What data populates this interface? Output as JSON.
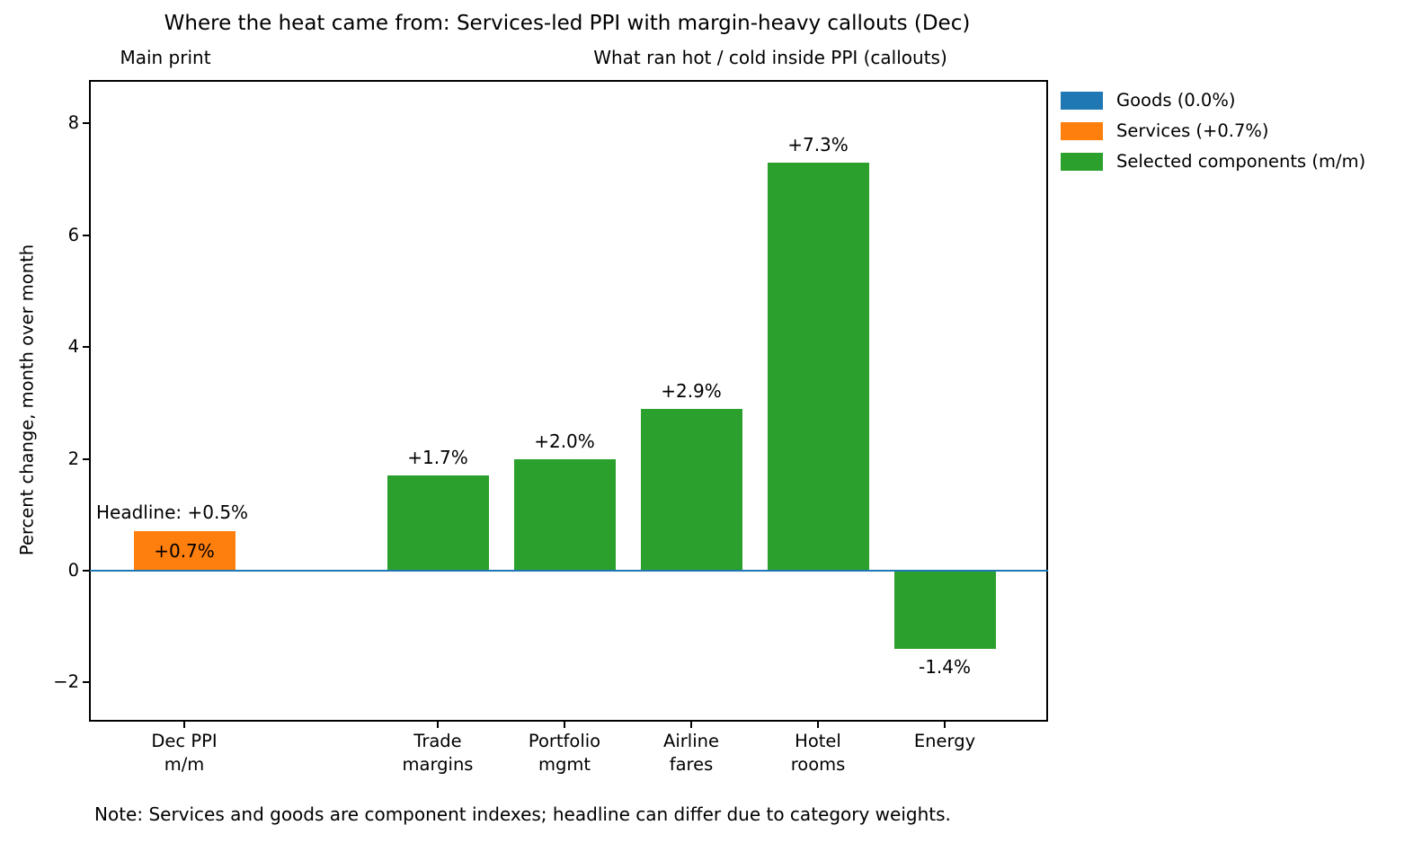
{
  "chart_data": {
    "type": "bar",
    "title": "Where the heat came from: Services-led PPI with margin-heavy callouts (Dec)",
    "subtitle_left": "Main print",
    "subtitle_right": "What ran hot / cold inside PPI (callouts)",
    "ylabel": "Percent change, month over month",
    "ylim": [
      -2.65,
      8.76
    ],
    "yticks": [
      -2,
      0,
      2,
      4,
      6,
      8
    ],
    "grid": false,
    "categories": [
      "Dec PPI\nm/m",
      "Trade\nmargins",
      "Portfolio\nmgmt",
      "Airline\nfares",
      "Hotel\nrooms",
      "Energy"
    ],
    "x_positions": [
      0,
      2,
      3,
      4,
      5,
      6
    ],
    "values": [
      0.7,
      1.7,
      2.0,
      2.9,
      7.3,
      -1.4
    ],
    "bar_labels": [
      "+0.7%",
      "+1.7%",
      "+2.0%",
      "+2.9%",
      "+7.3%",
      "-1.4%"
    ],
    "bar_label_placement": [
      "inside",
      "above",
      "above",
      "above",
      "above",
      "below"
    ],
    "bar_colors": [
      "#ff7f0e",
      "#2ca02c",
      "#2ca02c",
      "#2ca02c",
      "#2ca02c",
      "#2ca02c"
    ],
    "zero_line_color": "#1f77b4",
    "annotation": "Headline: +0.5%",
    "legend_position": "outside-right",
    "legend": [
      {
        "label": "Goods (0.0%)",
        "color": "#1f77b4"
      },
      {
        "label": "Services (+0.7%)",
        "color": "#ff7f0e"
      },
      {
        "label": "Selected components (m/m)",
        "color": "#2ca02c"
      }
    ],
    "note": "Note: Services and goods are component indexes; headline can differ due to category weights."
  }
}
